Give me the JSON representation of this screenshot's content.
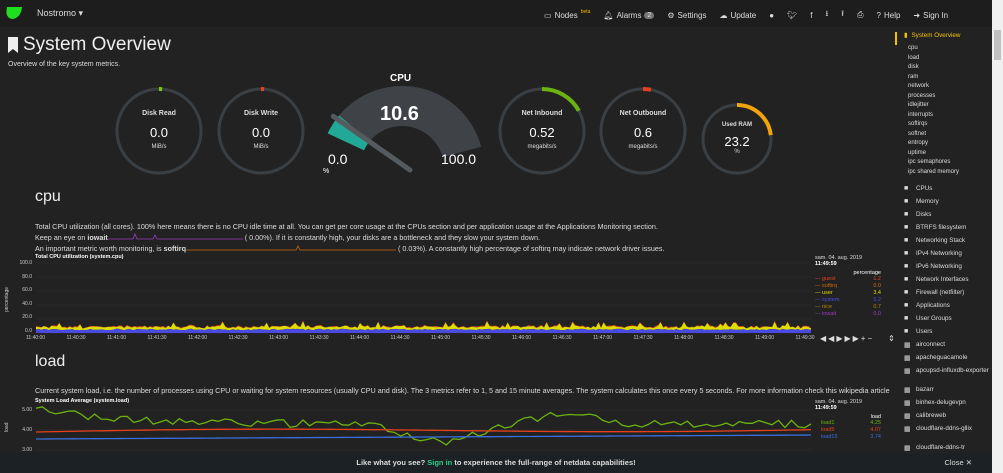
{
  "nav": {
    "brand": "Nostromo",
    "items": [
      {
        "label": "Nodes",
        "extra": "beta",
        "icon": "monitor-icon"
      },
      {
        "label": "Alarms",
        "badge": "2",
        "icon": "bell-icon"
      },
      {
        "label": "Settings",
        "icon": "gear-icon"
      },
      {
        "label": "Update",
        "icon": "cloud-download-icon"
      },
      {
        "label": "",
        "icon": "github-icon"
      },
      {
        "label": "",
        "icon": "twitter-icon"
      },
      {
        "label": "",
        "icon": "facebook-icon"
      },
      {
        "label": "",
        "icon": "download-icon"
      },
      {
        "label": "",
        "icon": "upload-icon"
      },
      {
        "label": "",
        "icon": "print-icon"
      },
      {
        "label": "Help",
        "icon": "question-icon"
      },
      {
        "label": "Sign In",
        "icon": "sign-in-icon"
      }
    ]
  },
  "page": {
    "title": "System Overview",
    "subtitle": "Overview of the key system metrics."
  },
  "gauges": [
    {
      "label": "Disk Read",
      "value": "0.0",
      "unit": "MiB/s",
      "fraction": 0,
      "color": "#7ac70c"
    },
    {
      "label": "Disk Write",
      "value": "0.0",
      "unit": "MiB/s",
      "fraction": 0,
      "color": "#e8401c"
    },
    {
      "label": "Net Inbound",
      "value": "0.52",
      "unit": "megabits/s",
      "fraction": 0.17,
      "color": "#6bb311"
    },
    {
      "label": "Net Outbound",
      "value": "0.6",
      "unit": "megabits/s",
      "fraction": 0.03,
      "color": "#e8401c"
    },
    {
      "label": "Used RAM",
      "value": "23.2",
      "unit": "%",
      "fraction": 0.232,
      "color": "#f0a30a"
    }
  ],
  "cpu_gauge": {
    "label": "CPU",
    "value": "10.6",
    "min": "0.0",
    "max": "100.0",
    "unit": "%",
    "fraction": 0.106,
    "color": "#22a896"
  },
  "cpu": {
    "heading": "cpu",
    "desc1": "Total CPU utilization (all cores). 100% here means there is no CPU idle time at all. You can get per core usage at the CPUs section and per application usage at the Applications Monitoring section.",
    "desc2a": "Keep an eye on ",
    "desc2b": "iowait",
    "desc2c": "(      0.00%). If it is constantly high, your disks are a bottleneck and they slow your system down.",
    "desc3a": "An important metric worth monitoring, is ",
    "desc3b": "softirq",
    "desc3c": "(      0.03%). A constantly high percentage of softirq may indicate network driver issues.",
    "chart_title": "Total CPU utilization (system.cpu)",
    "ylabel": "percentage",
    "yticks": [
      "100.0",
      "80.0",
      "60.0",
      "40.0",
      "20.0",
      "0.0"
    ],
    "xticks": [
      "11:40:00",
      "11:40:30",
      "11:41:00",
      "11:41:30",
      "11:42:00",
      "11:42:30",
      "11:43:00",
      "11:43:30",
      "11:44:00",
      "11:44:30",
      "11:45:00",
      "11:45:30",
      "11:46:00",
      "11:46:30",
      "11:47:00",
      "11:47:30",
      "11:48:00",
      "11:48:30",
      "11:49:00",
      "11:49:30"
    ],
    "date": "sam. 04. aug. 2019",
    "time": "11:49:59",
    "legend_title": "percentage",
    "legend": [
      {
        "name": "guest",
        "value": "1.2",
        "color": "#e8401c"
      },
      {
        "name": "softirq",
        "value": "0.0",
        "color": "#d26a0c"
      },
      {
        "name": "user",
        "value": "3.4",
        "color": "#dddd00"
      },
      {
        "name": "system",
        "value": "5.2",
        "color": "#4a4ae0"
      },
      {
        "name": "nice",
        "value": "0.7",
        "color": "#b8860b"
      },
      {
        "name": "iowait",
        "value": "0.0",
        "color": "#9a3bbf"
      }
    ]
  },
  "load": {
    "heading": "load",
    "desc": "Current system load, i.e. the number of processes using CPU or waiting for system resources (usually CPU and disk). The 3 metrics refer to 1, 5 and 15 minute averages. The system calculates this once every 5 seconds. For more information check this wikipedia article",
    "chart_title": "System Load Average (system.load)",
    "ylabel": "load",
    "yticks": [
      "5.00",
      "4.00",
      "3.00"
    ],
    "date": "sam. 04. aug. 2019",
    "time": "11:49:59",
    "legend_title": "load",
    "legend": [
      {
        "name": "load1",
        "value": "4.25",
        "color": "#6bb311"
      },
      {
        "name": "load5",
        "value": "4.07",
        "color": "#e8401c"
      },
      {
        "name": "load15",
        "value": "3.74",
        "color": "#3a6ee0"
      }
    ]
  },
  "sidebar": {
    "active": "System Overview",
    "sub": [
      "cpu",
      "load",
      "disk",
      "ram",
      "network",
      "processes",
      "idlejitter",
      "interrupts",
      "softirqs",
      "softnet",
      "entropy",
      "uptime",
      "ipc semaphores",
      "ipc shared memory"
    ],
    "sections": [
      "CPUs",
      "Memory",
      "Disks",
      "BTRFS filesystem",
      "Networking Stack",
      "IPv4 Networking",
      "IPv6 Networking",
      "Network Interfaces",
      "Firewall (netfilter)",
      "Applications",
      "User Groups",
      "Users",
      "airconnect",
      "apacheguacamole",
      "apcupsd-influxdb-exporter",
      "bazarr",
      "binhex-delugevpn",
      "calibreweb",
      "cloudflare-ddns-gllix",
      "cloudflare-ddns-tr"
    ]
  },
  "banner": {
    "a": "Like what you see? ",
    "link": "Sign in",
    "b": " to experience the full-range of netdata capabilities!",
    "close": "Close"
  }
}
